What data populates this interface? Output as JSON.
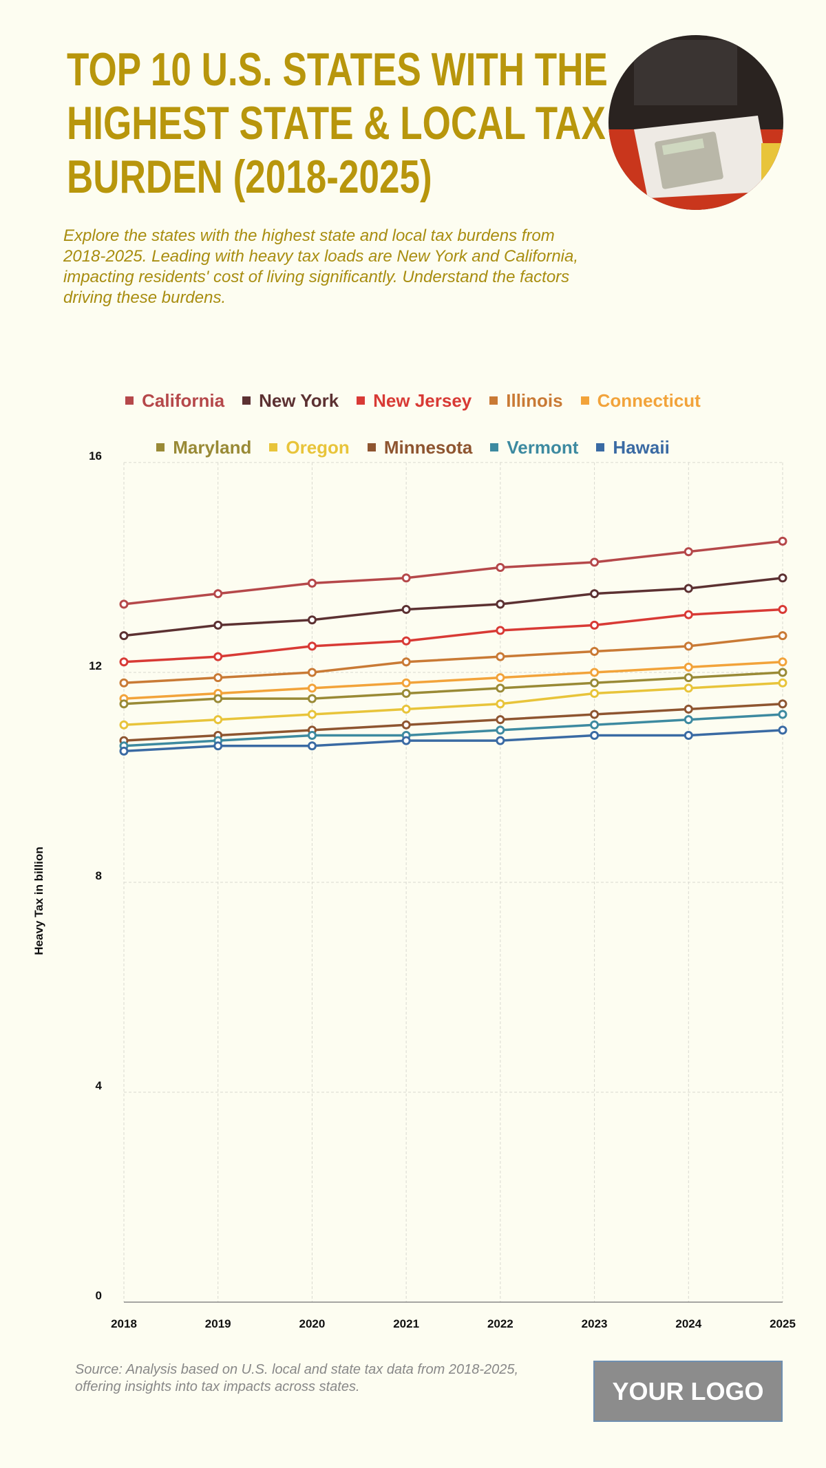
{
  "chart_data": {
    "type": "line",
    "title": "TOP 10 U.S. STATES WITH THE HIGHEST STATE & LOCAL TAX BURDEN (2018-2025)",
    "subtitle": "Explore the states with the highest state and local tax burdens from 2018-2025. Leading with heavy tax loads are New York and California, impacting residents' cost of living significantly. Understand the factors driving these burdens.",
    "y_label": "Heavy Tax in billion",
    "categories": [
      "2018",
      "2019",
      "2020",
      "2021",
      "2022",
      "2023",
      "2024",
      "2025"
    ],
    "ylim": [
      0,
      16
    ],
    "yticks": [
      0,
      4,
      8,
      12,
      16
    ],
    "grid": true,
    "series": [
      {
        "name": "California",
        "color": "#b5484a",
        "values": [
          13.3,
          13.5,
          13.7,
          13.8,
          14.0,
          14.1,
          14.3,
          14.5
        ]
      },
      {
        "name": "New York",
        "color": "#5c3132",
        "values": [
          12.7,
          12.9,
          13.0,
          13.2,
          13.3,
          13.5,
          13.6,
          13.8
        ]
      },
      {
        "name": "New Jersey",
        "color": "#d83a35",
        "values": [
          12.2,
          12.3,
          12.5,
          12.6,
          12.8,
          12.9,
          13.1,
          13.2
        ]
      },
      {
        "name": "Illinois",
        "color": "#c97a35",
        "values": [
          11.8,
          11.9,
          12.0,
          12.2,
          12.3,
          12.4,
          12.5,
          12.7
        ]
      },
      {
        "name": "Connecticut",
        "color": "#f2a33a",
        "values": [
          11.5,
          11.6,
          11.7,
          11.8,
          11.9,
          12.0,
          12.1,
          12.2
        ]
      },
      {
        "name": "Maryland",
        "color": "#998a36",
        "values": [
          11.4,
          11.5,
          11.5,
          11.6,
          11.7,
          11.8,
          11.9,
          12.0
        ]
      },
      {
        "name": "Oregon",
        "color": "#e8c43a",
        "values": [
          11.0,
          11.1,
          11.2,
          11.3,
          11.4,
          11.6,
          11.7,
          11.8
        ]
      },
      {
        "name": "Minnesota",
        "color": "#8e5530",
        "values": [
          10.7,
          10.8,
          10.9,
          11.0,
          11.1,
          11.2,
          11.3,
          11.4
        ]
      },
      {
        "name": "Vermont",
        "color": "#3d8aa0",
        "values": [
          10.6,
          10.7,
          10.8,
          10.8,
          10.9,
          11.0,
          11.1,
          11.2
        ]
      },
      {
        "name": "Hawaii",
        "color": "#3a6aa3",
        "values": [
          10.5,
          10.6,
          10.6,
          10.7,
          10.7,
          10.8,
          10.8,
          10.9
        ]
      }
    ],
    "source": "Source: Analysis based on U.S. local and state tax data from 2018-2025, offering insights into tax impacts across states.",
    "logo": "YOUR LOGO"
  }
}
